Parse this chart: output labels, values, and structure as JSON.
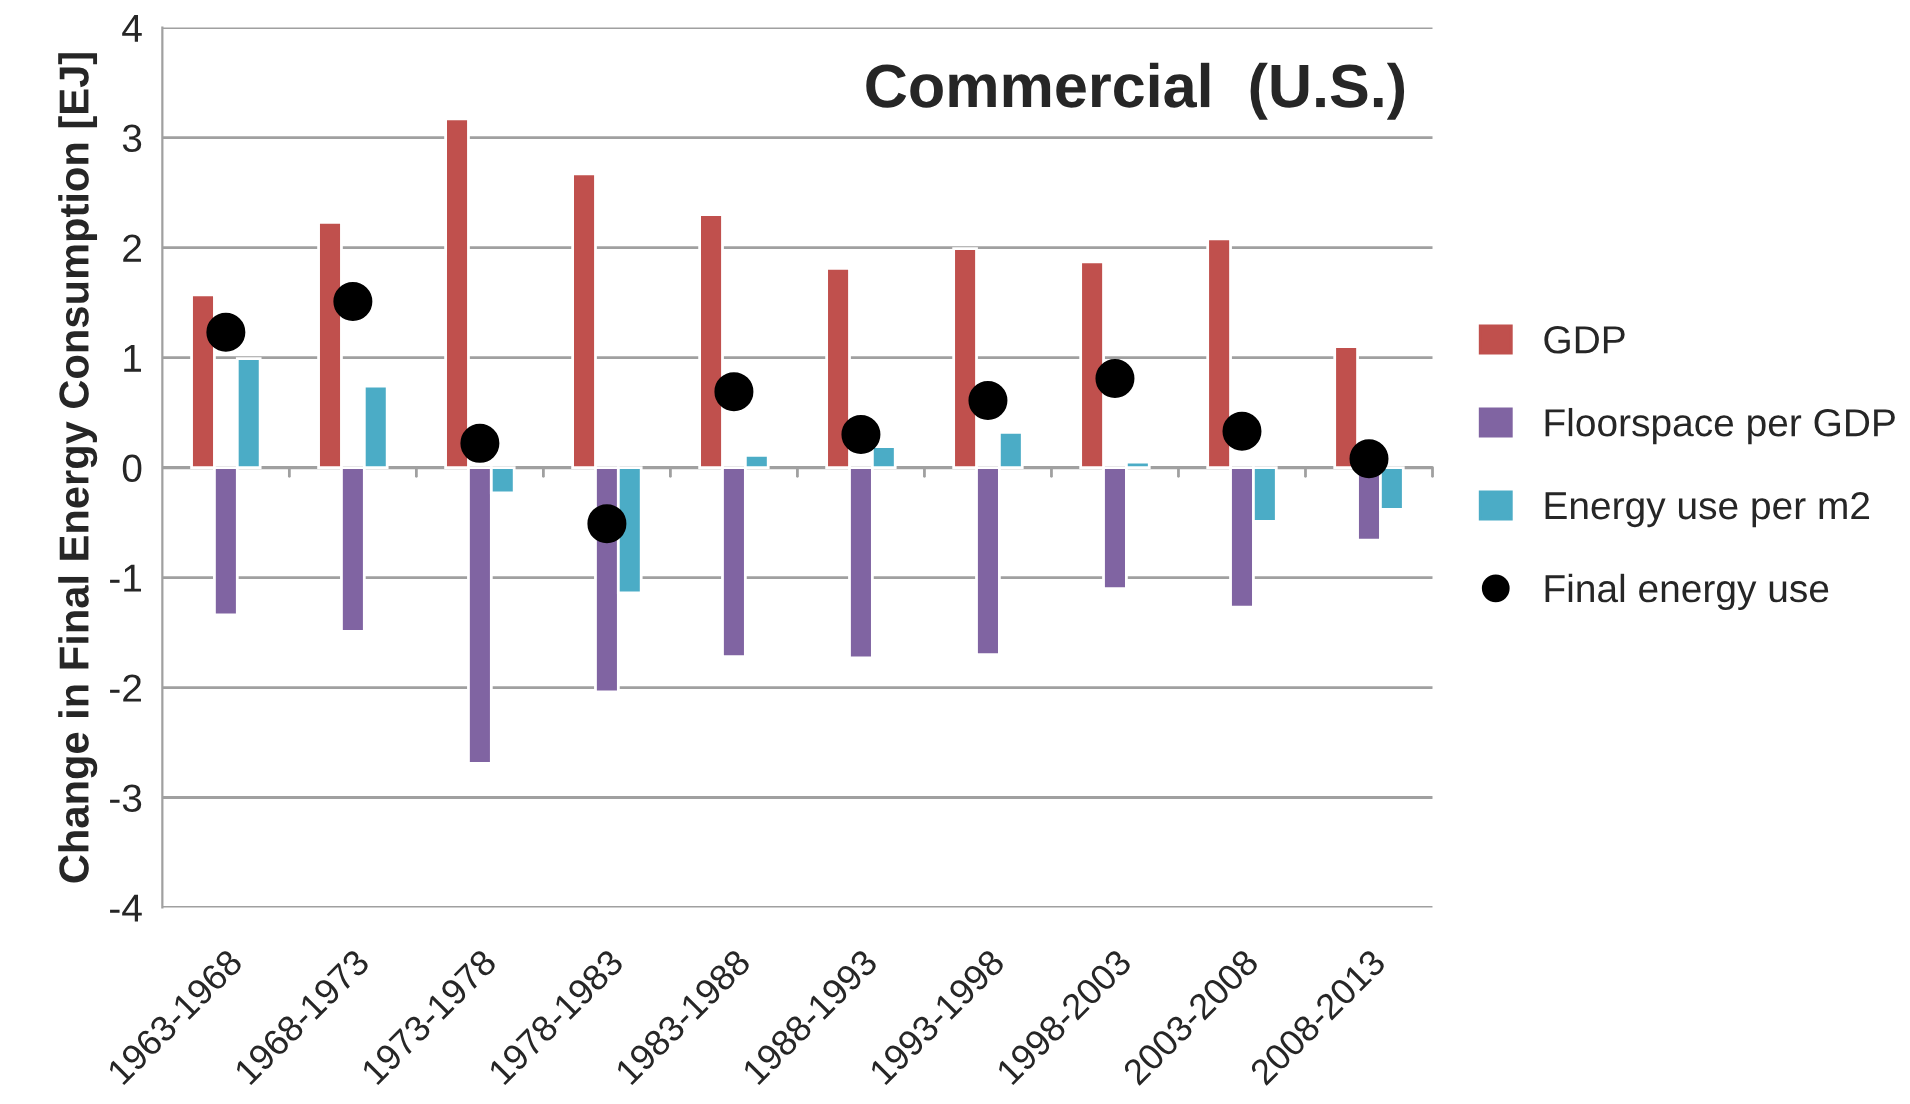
{
  "chart_data": {
    "type": "bar",
    "title": "Commercial  (U.S.)",
    "ylabel": "Change in Final Energy Consumption [EJ]",
    "categories": [
      "1963-1968",
      "1968-1973",
      "1973-1978",
      "1978-1983",
      "1983-1988",
      "1988-1993",
      "1993-1998",
      "1998-2003",
      "2003-2008",
      "2008-2013"
    ],
    "series": [
      {
        "name": "GDP",
        "color": "#c0504d",
        "values": [
          1.57,
          2.23,
          3.17,
          2.67,
          2.3,
          1.81,
          1.99,
          1.87,
          2.08,
          1.1
        ]
      },
      {
        "name": "Floorspace per GDP",
        "color": "#8064a2",
        "values": [
          -1.34,
          -1.49,
          -2.69,
          -2.04,
          -1.72,
          -1.73,
          -1.7,
          -1.1,
          -1.27,
          -0.66
        ]
      },
      {
        "name": "Energy use per m2",
        "color": "#4bacc6",
        "values": [
          0.99,
          0.74,
          -0.23,
          -1.14,
          0.11,
          0.19,
          0.32,
          0.05,
          -0.49,
          -0.38
        ]
      },
      {
        "name": "Final energy use",
        "type": "scatter",
        "color": "#000000",
        "values": [
          1.23,
          1.51,
          0.22,
          -0.51,
          0.69,
          0.3,
          0.61,
          0.81,
          0.33,
          0.08
        ]
      }
    ],
    "ylim": [
      -4,
      4
    ],
    "yticks": [
      -4,
      -3,
      -2,
      -1,
      0,
      1,
      2,
      3,
      4
    ],
    "grid": "y",
    "legend": "right",
    "marker": "circle"
  }
}
